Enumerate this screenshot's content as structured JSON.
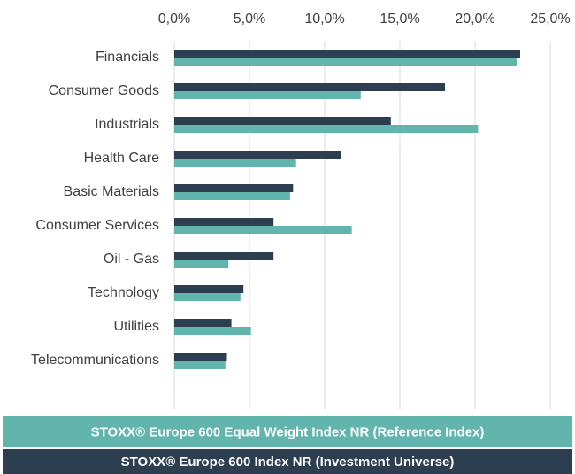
{
  "chart_data": {
    "type": "bar",
    "orientation": "horizontal",
    "categories": [
      "Financials",
      "Consumer Goods",
      "Industrials",
      "Health Care",
      "Basic Materials",
      "Consumer Services",
      "Oil - Gas",
      "Technology",
      "Utilities",
      "Telecommunications"
    ],
    "series": [
      {
        "name": "STOXX® Europe 600 Index NR (Investment Universe)",
        "color": "#2d3e50",
        "values": [
          23.0,
          18.0,
          14.4,
          11.1,
          7.9,
          6.6,
          6.6,
          4.6,
          3.8,
          3.5
        ]
      },
      {
        "name": "STOXX® Europe 600 Equal Weight Index NR (Reference Index)",
        "color": "#62b5ac",
        "values": [
          22.8,
          12.4,
          20.2,
          8.1,
          7.7,
          11.8,
          3.6,
          4.4,
          5.1,
          3.4
        ]
      }
    ],
    "xlim": [
      0,
      25
    ],
    "xticks": [
      {
        "value": 0,
        "label": "0,0%"
      },
      {
        "value": 5,
        "label": "5,0%"
      },
      {
        "value": 10,
        "label": "10,0%"
      },
      {
        "value": 15,
        "label": "15,0%"
      },
      {
        "value": 20,
        "label": "20,0%"
      },
      {
        "value": 25,
        "label": "25,0%"
      }
    ],
    "grid": true
  }
}
